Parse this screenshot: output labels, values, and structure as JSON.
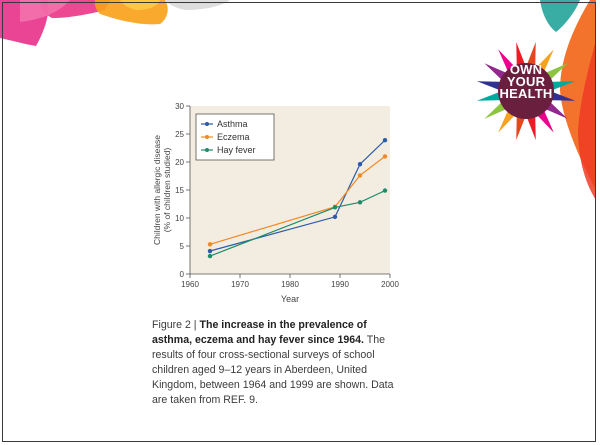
{
  "badge": {
    "lines": [
      "OWN",
      "YOUR",
      "HEALTH"
    ],
    "colors": [
      "#e8461c",
      "#f6a21e",
      "#8cc63f",
      "#00a99d",
      "#2e3192",
      "#92278f",
      "#ec008c",
      "#ed1c24"
    ]
  },
  "caption": {
    "prefix": "Figure 2 | ",
    "title": "The increase in the prevalence of asthma, eczema and hay fever since 1964.",
    "body": "The results of four cross-sectional surveys of school children aged 9–12 years in Aberdeen, United Kingdom, between 1964 and 1999 are shown. Data are taken from REF. 9."
  },
  "chart_data": {
    "type": "line",
    "title": "",
    "xlabel": "Year",
    "ylabel_lines": [
      "Children with allergic disease",
      "(% of children studied)"
    ],
    "xlim": [
      1960,
      2000
    ],
    "ylim": [
      0,
      30
    ],
    "xticks": [
      1960,
      1970,
      1980,
      1990,
      2000
    ],
    "yticks": [
      0,
      5,
      10,
      15,
      20,
      25,
      30
    ],
    "legend_position": "top-left",
    "grid": false,
    "series": [
      {
        "name": "Asthma",
        "color": "#2a5ba8",
        "x": [
          1964,
          1989,
          1994,
          1999
        ],
        "y": [
          4.1,
          10.2,
          19.6,
          23.9
        ]
      },
      {
        "name": "Eczema",
        "color": "#f08a24",
        "x": [
          1964,
          1989,
          1994,
          1999
        ],
        "y": [
          5.3,
          12.0,
          17.6,
          21.0
        ]
      },
      {
        "name": "Hay fever",
        "color": "#1e8c6a",
        "x": [
          1964,
          1989,
          1994,
          1999
        ],
        "y": [
          3.2,
          11.9,
          12.8,
          14.9
        ]
      }
    ]
  }
}
